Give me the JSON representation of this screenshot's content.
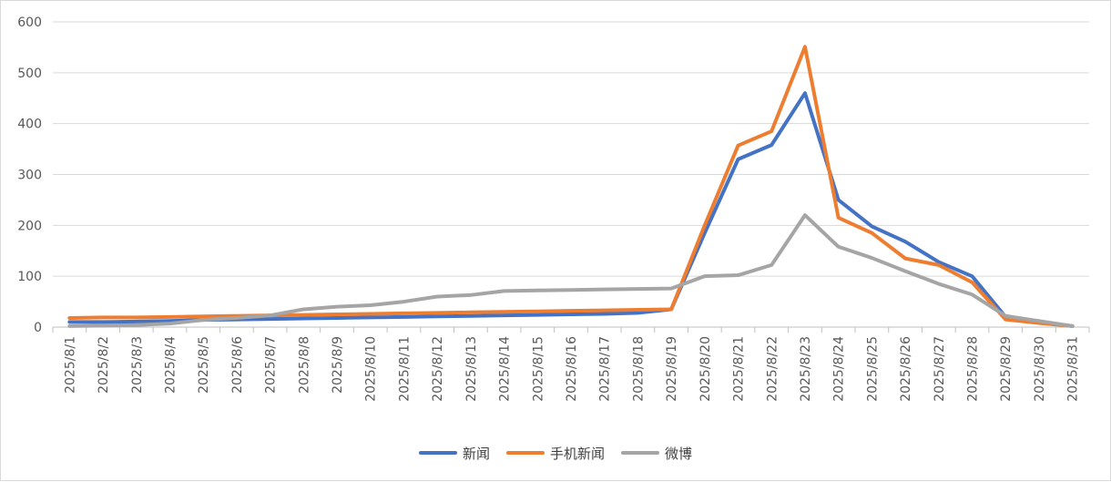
{
  "chart_data": {
    "type": "line",
    "title": "",
    "xlabel": "",
    "ylabel": "",
    "ylim": [
      0,
      600
    ],
    "yticks": [
      0,
      100,
      200,
      300,
      400,
      500,
      600
    ],
    "grid": "horizontal",
    "legend": "bottom",
    "categories": [
      "2025/8/1",
      "2025/8/2",
      "2025/8/3",
      "2025/8/4",
      "2025/8/5",
      "2025/8/6",
      "2025/8/7",
      "2025/8/8",
      "2025/8/9",
      "2025/8/10",
      "2025/8/11",
      "2025/8/12",
      "2025/8/13",
      "2025/8/14",
      "2025/8/15",
      "2025/8/16",
      "2025/8/17",
      "2025/8/18",
      "2025/8/19",
      "2025/8/20",
      "2025/8/21",
      "2025/8/22",
      "2025/8/23",
      "2025/8/24",
      "2025/8/25",
      "2025/8/26",
      "2025/8/27",
      "2025/8/28",
      "2025/8/29",
      "2025/8/30",
      "2025/8/31"
    ],
    "series": [
      {
        "name": "新闻",
        "color": "#4472C4",
        "values": [
          10,
          10,
          11,
          12,
          14,
          15,
          16,
          17,
          18,
          19,
          20,
          21,
          22,
          23,
          24,
          25,
          26,
          28,
          35,
          185,
          330,
          358,
          460,
          250,
          198,
          168,
          128,
          100,
          20,
          10,
          2
        ]
      },
      {
        "name": "手机新闻",
        "color": "#ED7D31",
        "values": [
          18,
          19,
          19,
          20,
          21,
          22,
          23,
          24,
          25,
          26,
          27,
          28,
          29,
          30,
          31,
          32,
          33,
          34,
          35,
          200,
          357,
          385,
          551,
          215,
          185,
          135,
          122,
          88,
          15,
          8,
          2
        ]
      },
      {
        "name": "微博",
        "color": "#A5A5A5",
        "values": [
          2,
          3,
          4,
          7,
          14,
          18,
          23,
          35,
          40,
          43,
          50,
          60,
          63,
          71,
          72,
          73,
          74,
          75,
          76,
          100,
          102,
          122,
          220,
          158,
          136,
          110,
          85,
          64,
          22,
          12,
          2
        ]
      }
    ]
  }
}
